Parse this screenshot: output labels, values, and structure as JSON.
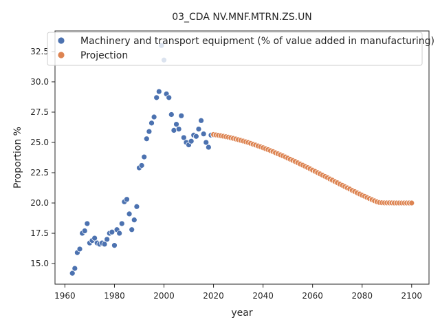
{
  "chart_data": {
    "type": "scatter",
    "title": "03_CDA NV.MNF.MTRN.ZS.UN",
    "xlabel": "year",
    "ylabel": "Proportion %",
    "xlim": [
      1956,
      2107
    ],
    "ylim": [
      13.3,
      34.2
    ],
    "x_ticks": [
      1960,
      1980,
      2000,
      2020,
      2040,
      2060,
      2080,
      2100
    ],
    "y_ticks": [
      15.0,
      17.5,
      20.0,
      22.5,
      25.0,
      27.5,
      30.0,
      32.5
    ],
    "x_tick_labels": [
      "1960",
      "1980",
      "2000",
      "2020",
      "2040",
      "2060",
      "2080",
      "2100"
    ],
    "y_tick_labels": [
      "15.0",
      "17.5",
      "20.0",
      "22.5",
      "25.0",
      "27.5",
      "30.0",
      "32.5"
    ],
    "grid": false,
    "legend_position": "top",
    "series": [
      {
        "name": "Machinery and transport equipment (% of value added in manufacturing)",
        "color": "#4c72b0",
        "x": [
          1963,
          1964,
          1965,
          1966,
          1967,
          1968,
          1969,
          1970,
          1971,
          1972,
          1973,
          1974,
          1975,
          1976,
          1977,
          1978,
          1979,
          1980,
          1981,
          1982,
          1983,
          1984,
          1985,
          1986,
          1987,
          1988,
          1989,
          1990,
          1991,
          1992,
          1993,
          1994,
          1995,
          1996,
          1997,
          1998,
          1999,
          2000,
          2001,
          2002,
          2003,
          2004,
          2005,
          2006,
          2007,
          2008,
          2009,
          2010,
          2011,
          2012,
          2013,
          2014,
          2015,
          2016,
          2017,
          2018,
          2019,
          2020
        ],
        "y": [
          14.2,
          14.6,
          15.9,
          16.2,
          17.5,
          17.7,
          18.3,
          16.7,
          16.9,
          17.1,
          16.7,
          16.6,
          16.7,
          16.6,
          17.0,
          17.5,
          17.6,
          16.5,
          17.8,
          17.5,
          18.3,
          20.1,
          20.3,
          19.1,
          17.8,
          18.6,
          19.7,
          22.9,
          23.1,
          23.8,
          25.3,
          25.9,
          26.6,
          27.1,
          28.7,
          29.2,
          33.0,
          31.8,
          29.0,
          28.7,
          27.3,
          26.0,
          26.5,
          26.1,
          27.2,
          25.4,
          25.0,
          24.8,
          25.1,
          25.6,
          25.5,
          26.1,
          26.8,
          25.7,
          25.0,
          24.6,
          25.6,
          25.6
        ]
      },
      {
        "name": "Projection",
        "color": "#dd8452",
        "x": [
          2020,
          2021,
          2022,
          2023,
          2024,
          2025,
          2026,
          2027,
          2028,
          2029,
          2030,
          2031,
          2032,
          2033,
          2034,
          2035,
          2036,
          2037,
          2038,
          2039,
          2040,
          2041,
          2042,
          2043,
          2044,
          2045,
          2046,
          2047,
          2048,
          2049,
          2050,
          2051,
          2052,
          2053,
          2054,
          2055,
          2056,
          2057,
          2058,
          2059,
          2060,
          2061,
          2062,
          2063,
          2064,
          2065,
          2066,
          2067,
          2068,
          2069,
          2070,
          2071,
          2072,
          2073,
          2074,
          2075,
          2076,
          2077,
          2078,
          2079,
          2080,
          2081,
          2082,
          2083,
          2084,
          2085,
          2086,
          2087,
          2088,
          2089,
          2090,
          2091,
          2092,
          2093,
          2094,
          2095,
          2096,
          2097,
          2098,
          2099,
          2100
        ],
        "y": [
          25.65,
          25.62,
          25.59,
          25.55,
          25.51,
          25.47,
          25.43,
          25.38,
          25.33,
          25.28,
          25.23,
          25.17,
          25.11,
          25.05,
          24.99,
          24.92,
          24.85,
          24.78,
          24.71,
          24.64,
          24.56,
          24.48,
          24.4,
          24.32,
          24.24,
          24.15,
          24.06,
          23.98,
          23.89,
          23.8,
          23.7,
          23.61,
          23.51,
          23.42,
          23.32,
          23.22,
          23.12,
          23.02,
          22.92,
          22.82,
          22.71,
          22.61,
          22.51,
          22.4,
          22.3,
          22.19,
          22.09,
          21.98,
          21.88,
          21.77,
          21.67,
          21.56,
          21.46,
          21.35,
          21.25,
          21.15,
          21.04,
          20.94,
          20.84,
          20.74,
          20.64,
          20.55,
          20.45,
          20.36,
          20.27,
          20.18,
          20.1,
          20.04,
          20.02,
          20.01,
          20.01,
          20.01,
          20.01,
          20.0,
          20.0,
          20.0,
          20.0,
          20.0,
          20.0,
          20.0,
          20.0
        ]
      }
    ]
  }
}
